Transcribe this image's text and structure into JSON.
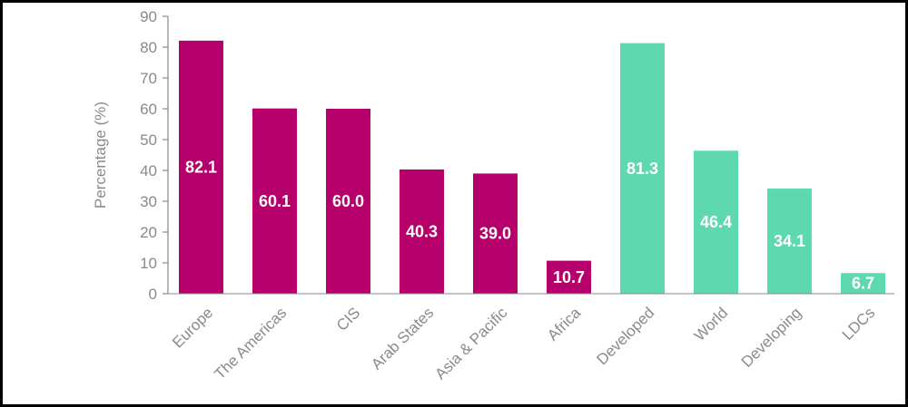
{
  "chart_data": {
    "type": "bar",
    "title": "",
    "xlabel": "",
    "ylabel": "Percentage (%)",
    "ylim": [
      0,
      90
    ],
    "yticks": [
      0,
      10,
      20,
      30,
      40,
      50,
      60,
      70,
      80,
      90
    ],
    "grid": false,
    "categories": [
      "Europe",
      "The Americas",
      "CIS",
      "Arab States",
      "Asia & Pacific",
      "Africa",
      "Developed",
      "World",
      "Developing",
      "LDCs"
    ],
    "values": [
      82.1,
      60.1,
      60.0,
      40.3,
      39.0,
      10.7,
      81.3,
      46.4,
      34.1,
      6.7
    ],
    "value_labels": [
      "82.1",
      "60.1",
      "60.0",
      "40.3",
      "39.0",
      "10.7",
      "81.3",
      "46.4",
      "34.1",
      "6.7"
    ],
    "colors": [
      "#b5006b",
      "#b5006b",
      "#b5006b",
      "#b5006b",
      "#b5006b",
      "#b5006b",
      "#5ed8ae",
      "#5ed8ae",
      "#5ed8ae",
      "#5ed8ae"
    ],
    "axis_color": "#8a8a8a"
  }
}
